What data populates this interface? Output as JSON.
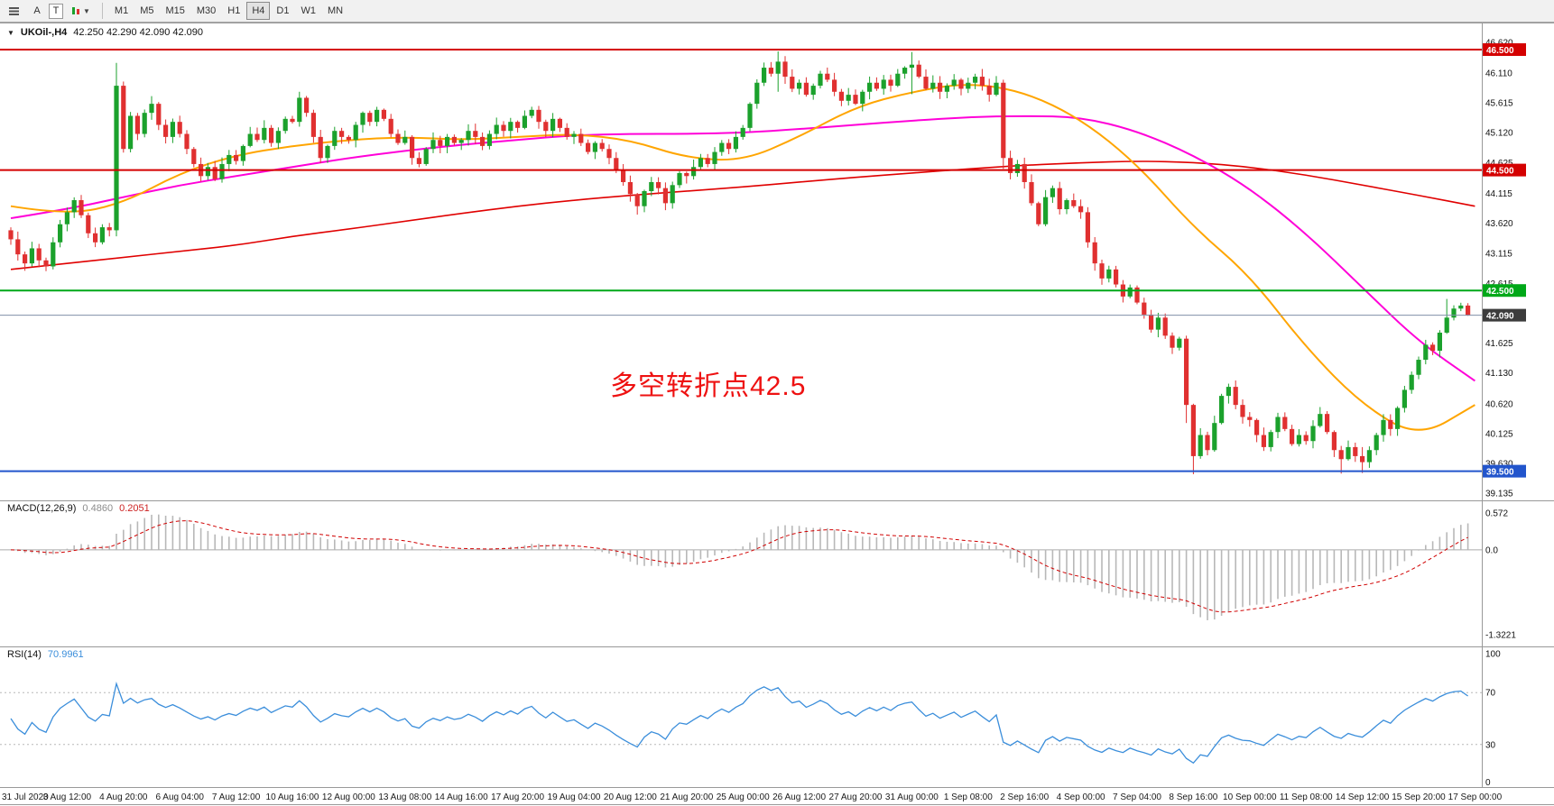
{
  "toolbar": {
    "tools": {
      "a_label": "A",
      "t_label": "T"
    },
    "timeframes": {
      "items": [
        "M1",
        "M5",
        "M15",
        "M30",
        "H1",
        "H4",
        "D1",
        "W1",
        "MN"
      ],
      "active": "H4"
    }
  },
  "chart_data": {
    "type": "candlestick",
    "title": {
      "symbol_period": "UKOil-,H4",
      "ohlc": "42.250 42.290 42.090 42.090"
    },
    "annotation": {
      "text": "多空转折点42.5",
      "color": "#ee1111"
    },
    "price_axis": {
      "max": 46.62,
      "min": 39.135,
      "labels": [
        "46.620",
        "46.110",
        "45.615",
        "45.120",
        "44.625",
        "44.115",
        "43.620",
        "43.115",
        "42.615",
        "41.625",
        "41.130",
        "40.620",
        "40.125",
        "39.630",
        "39.135"
      ]
    },
    "hlines": [
      {
        "price": 46.5,
        "label": "46.500",
        "color": "#d40000"
      },
      {
        "price": 44.5,
        "label": "44.500",
        "color": "#d40000"
      },
      {
        "price": 42.5,
        "label": "42.500",
        "color": "#00a818"
      },
      {
        "price": 39.5,
        "label": "39.500",
        "color": "#2255cc"
      }
    ],
    "bid": {
      "price": 42.09,
      "label": "42.090",
      "line_color": "#8090a8",
      "badge_color": "#3c3c3c"
    },
    "date_axis": [
      "31 Jul 2020",
      "3 Aug 12:00",
      "4 Aug 20:00",
      "6 Aug 04:00",
      "7 Aug 12:00",
      "10 Aug 16:00",
      "12 Aug 00:00",
      "13 Aug 08:00",
      "14 Aug 16:00",
      "17 Aug 20:00",
      "19 Aug 04:00",
      "20 Aug 12:00",
      "21 Aug 20:00",
      "25 Aug 00:00",
      "26 Aug 12:00",
      "27 Aug 20:00",
      "31 Aug 00:00",
      "1 Sep 08:00",
      "2 Sep 16:00",
      "4 Sep 00:00",
      "7 Sep 04:00",
      "8 Sep 16:00",
      "10 Sep 00:00",
      "11 Sep 08:00",
      "14 Sep 12:00",
      "15 Sep 20:00",
      "17 Sep 00:00"
    ],
    "candles": {
      "up_color": "#1ba12c",
      "down_color": "#e03030",
      "open0": 43.5,
      "closes": [
        43.35,
        43.1,
        42.95,
        43.2,
        43.0,
        42.9,
        43.3,
        43.6,
        43.8,
        44.0,
        43.75,
        43.45,
        43.3,
        43.55,
        43.5,
        45.9,
        44.85,
        45.4,
        45.1,
        45.45,
        45.6,
        45.25,
        45.05,
        45.3,
        45.1,
        44.85,
        44.6,
        44.4,
        44.55,
        44.35,
        44.6,
        44.75,
        44.65,
        44.9,
        45.1,
        45.0,
        45.2,
        44.95,
        45.15,
        45.35,
        45.3,
        45.7,
        45.45,
        45.05,
        44.7,
        44.9,
        45.15,
        45.05,
        45.0,
        45.25,
        45.45,
        45.3,
        45.5,
        45.35,
        45.1,
        44.95,
        45.05,
        44.7,
        44.6,
        44.85,
        45.0,
        44.9,
        45.05,
        44.95,
        45.0,
        45.15,
        45.05,
        44.9,
        45.1,
        45.25,
        45.15,
        45.3,
        45.2,
        45.4,
        45.5,
        45.3,
        45.15,
        45.35,
        45.2,
        45.05,
        45.1,
        44.95,
        44.8,
        44.95,
        44.85,
        44.7,
        44.5,
        44.3,
        44.1,
        43.9,
        44.15,
        44.3,
        44.2,
        43.95,
        44.25,
        44.45,
        44.4,
        44.55,
        44.7,
        44.6,
        44.8,
        44.95,
        44.85,
        45.05,
        45.2,
        45.6,
        45.95,
        46.2,
        46.1,
        46.3,
        46.05,
        45.85,
        45.95,
        45.75,
        45.9,
        46.1,
        46.0,
        45.8,
        45.65,
        45.75,
        45.6,
        45.8,
        45.95,
        45.85,
        46.0,
        45.9,
        46.1,
        46.2,
        46.25,
        46.05,
        45.85,
        45.95,
        45.8,
        45.9,
        46.0,
        45.85,
        45.95,
        46.05,
        45.9,
        45.75,
        45.95,
        44.7,
        44.45,
        44.6,
        44.3,
        43.95,
        43.6,
        44.05,
        44.2,
        43.85,
        44.0,
        43.9,
        43.8,
        43.3,
        42.95,
        42.7,
        42.85,
        42.6,
        42.4,
        42.55,
        42.3,
        42.1,
        41.85,
        42.05,
        41.75,
        41.55,
        41.7,
        40.6,
        39.75,
        40.1,
        39.85,
        40.3,
        40.75,
        40.9,
        40.6,
        40.4,
        40.35,
        40.1,
        39.9,
        40.15,
        40.4,
        40.2,
        39.95,
        40.1,
        40.0,
        40.25,
        40.45,
        40.15,
        39.85,
        39.7,
        39.9,
        39.75,
        39.65,
        39.85,
        40.1,
        40.35,
        40.2,
        40.55,
        40.85,
        41.1,
        41.35,
        41.6,
        41.5,
        41.8,
        42.05,
        42.2,
        42.25,
        42.09
      ],
      "wick_overrides": {
        "15": [
          46.28,
          43.4
        ],
        "41": [
          45.8,
          45.22
        ],
        "89": [
          44.12,
          43.76
        ],
        "109": [
          46.47,
          45.8
        ],
        "128": [
          46.46,
          45.76
        ],
        "141": [
          46.0,
          44.52
        ],
        "167": [
          41.75,
          40.3
        ],
        "168": [
          40.62,
          39.45
        ],
        "189": [
          39.92,
          39.46
        ],
        "192": [
          39.9,
          39.47
        ],
        "204": [
          42.36,
          41.78
        ],
        "207": [
          42.29,
          42.08
        ]
      }
    },
    "mas": [
      {
        "name": "ma-slow",
        "color": "#e00000",
        "width": 1.6,
        "points": [
          42.85,
          42.95,
          43.05,
          43.15,
          43.25,
          43.4,
          43.52,
          43.65,
          43.78,
          43.9,
          44.0,
          44.08,
          44.15,
          44.22,
          44.3,
          44.38,
          44.45,
          44.52,
          44.58,
          44.62,
          44.65,
          44.63,
          44.55,
          44.42,
          44.25,
          44.08,
          43.9
        ]
      },
      {
        "name": "ma-mid",
        "color": "#ff00d8",
        "width": 2,
        "points": [
          43.7,
          43.85,
          44.05,
          44.25,
          44.4,
          44.55,
          44.7,
          44.82,
          44.92,
          45.0,
          45.08,
          45.1,
          45.1,
          45.12,
          45.18,
          45.25,
          45.32,
          45.38,
          45.4,
          45.38,
          45.15,
          44.75,
          44.2,
          43.45,
          42.55,
          41.65,
          41.0
        ]
      },
      {
        "name": "ma-fast",
        "color": "#ffa500",
        "width": 2,
        "points": [
          43.9,
          43.75,
          43.95,
          44.45,
          44.75,
          44.9,
          45.0,
          45.05,
          45.0,
          45.05,
          45.1,
          45.0,
          44.7,
          44.65,
          45.05,
          45.55,
          45.8,
          45.95,
          45.8,
          45.35,
          44.6,
          43.55,
          42.75,
          41.55,
          40.6,
          40.05,
          40.6
        ]
      }
    ],
    "macd": {
      "label": "MACD(12,26,9)",
      "main_value": "0.4860",
      "signal_value": "0.2051",
      "fast": 12,
      "slow": 26,
      "signal": 9,
      "ymax": 0.63,
      "ymin": -1.42,
      "axis": [
        {
          "v": 0.572,
          "t": "0.572"
        },
        {
          "v": 0,
          "t": "0.0"
        },
        {
          "v": -1.3221,
          "t": "-1.3221"
        }
      ],
      "bar_color": "#b8b8b8",
      "signal_color": "#d00000"
    },
    "rsi": {
      "label": "RSI(14)",
      "value": "70.9961",
      "period": 14,
      "levels": [
        70,
        30
      ],
      "axis": [
        {
          "v": 100,
          "t": "100"
        },
        {
          "v": 70,
          "t": "70"
        },
        {
          "v": 30,
          "t": "30"
        },
        {
          "v": 0,
          "t": "0"
        }
      ],
      "line_color": "#3b8edb"
    }
  }
}
